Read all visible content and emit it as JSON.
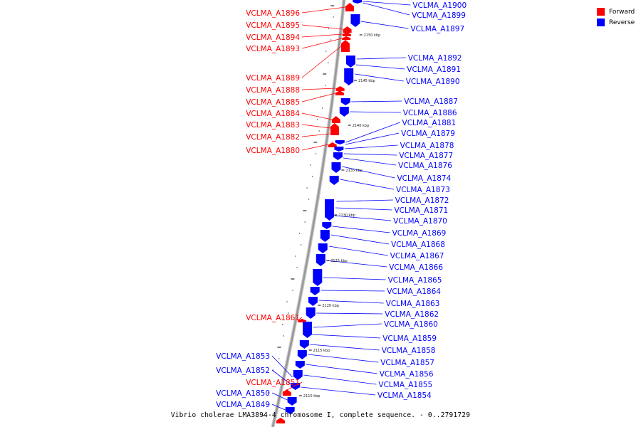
{
  "legend": [
    {
      "label": "Forward",
      "color": "#ff0000"
    },
    {
      "label": "Reverse",
      "color": "#0000ff"
    }
  ],
  "caption": "Vibrio cholerae LMA3894-4 chromosome I, complete sequence. - 0..2791729",
  "colors": {
    "forward": "#ff0000",
    "reverse": "#0000ff",
    "backbone": "#999999"
  },
  "ticks": [
    "2150 kbp",
    "2145 kbp",
    "2140 kbp",
    "2135 kbp",
    "2130 kbp",
    "2125 kbp",
    "2120 kbp",
    "2115 kbp",
    "2110 kbp"
  ],
  "forward_genes": [
    "VCLMA_A1896",
    "VCLMA_A1895",
    "VCLMA_A1894",
    "VCLMA_A1893",
    "VCLMA_A1889",
    "VCLMA_A1888",
    "VCLMA_A1885",
    "VCLMA_A1884",
    "VCLMA_A1883",
    "VCLMA_A1882",
    "VCLMA_A1880",
    "VCLMA_A1861",
    "VCLMA_A1851"
  ],
  "reverse_genes_left": [
    "VCLMA_A1853",
    "VCLMA_A1852",
    "VCLMA_A1850",
    "VCLMA_A1849"
  ],
  "reverse_genes_right": [
    "VCLMA_A1900",
    "VCLMA_A1899",
    "VCLMA_A1897",
    "VCLMA_A1892",
    "VCLMA_A1891",
    "VCLMA_A1890",
    "VCLMA_A1887",
    "VCLMA_A1886",
    "VCLMA_A1881",
    "VCLMA_A1879",
    "VCLMA_A1878",
    "VCLMA_A1877",
    "VCLMA_A1876",
    "VCLMA_A1874",
    "VCLMA_A1873",
    "VCLMA_A1872",
    "VCLMA_A1871",
    "VCLMA_A1870",
    "VCLMA_A1869",
    "VCLMA_A1868",
    "VCLMA_A1867",
    "VCLMA_A1866",
    "VCLMA_A1865",
    "VCLMA_A1864",
    "VCLMA_A1863",
    "VCLMA_A1862",
    "VCLMA_A1860",
    "VCLMA_A1859",
    "VCLMA_A1858",
    "VCLMA_A1857",
    "VCLMA_A1856",
    "VCLMA_A1855",
    "VCLMA_A1854"
  ]
}
